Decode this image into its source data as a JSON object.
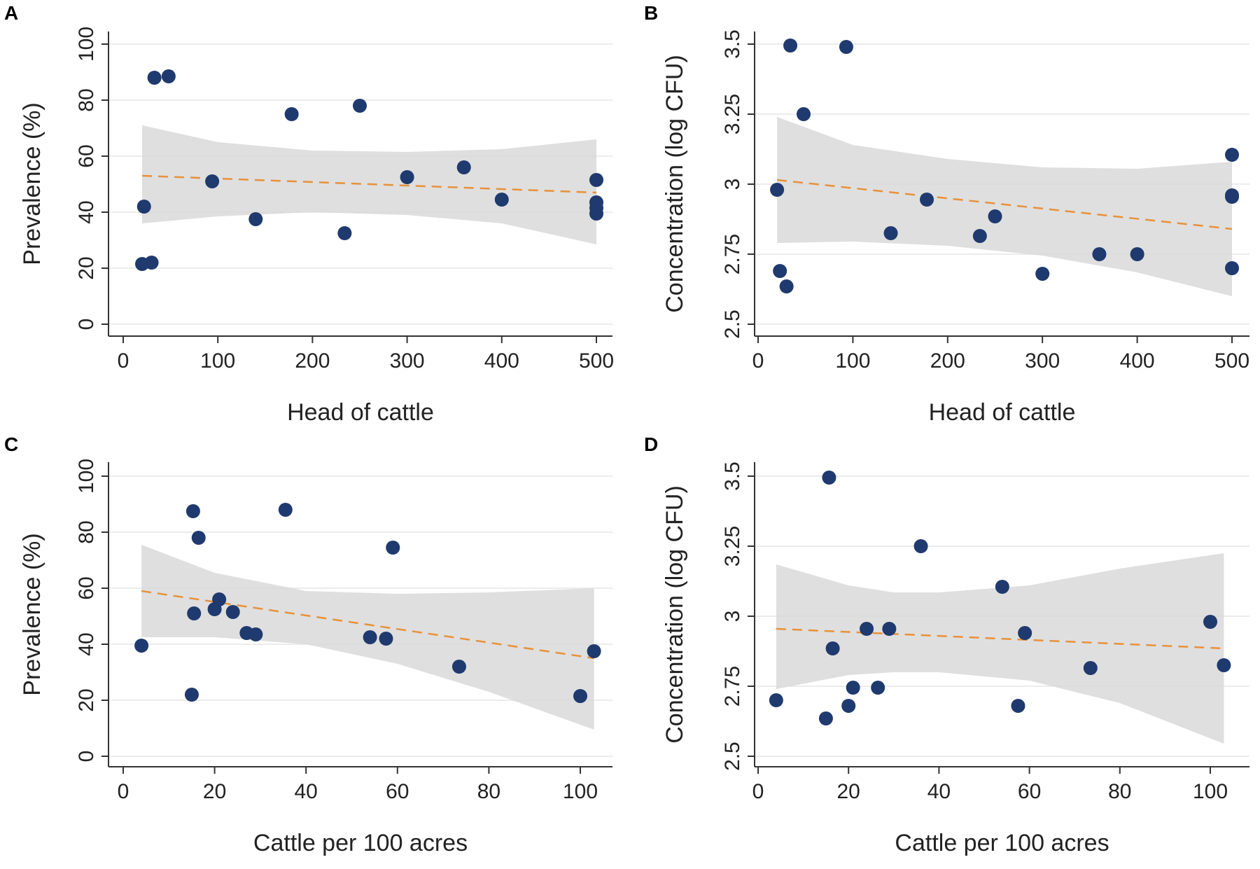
{
  "chart_data": [
    {
      "panel": "A",
      "type": "scatter",
      "xlabel": "Head of cattle",
      "ylabel": "Prevalence  (%)",
      "xlim": [
        0,
        520
      ],
      "ylim": [
        0,
        100
      ],
      "xticks": [
        "0",
        "100",
        "200",
        "300",
        "400",
        "500"
      ],
      "yticks": [
        "0",
        "20",
        "40",
        "60",
        "80",
        "100"
      ],
      "points": [
        [
          20,
          21.5
        ],
        [
          30,
          22
        ],
        [
          22,
          42
        ],
        [
          33,
          88
        ],
        [
          48,
          88.5
        ],
        [
          94,
          51
        ],
        [
          140,
          37.5
        ],
        [
          178,
          75
        ],
        [
          234,
          32.5
        ],
        [
          250,
          78
        ],
        [
          300,
          52.5
        ],
        [
          360,
          56
        ],
        [
          400,
          44.5
        ],
        [
          500,
          51.5
        ],
        [
          500,
          43.5
        ],
        [
          500,
          41.5
        ],
        [
          500,
          39.5
        ]
      ],
      "fit": {
        "x0": 20,
        "y0": 53,
        "x1": 500,
        "y1": 47
      },
      "ci_band": {
        "x": [
          20,
          100,
          200,
          300,
          400,
          500
        ],
        "upper": [
          71,
          65,
          62,
          61.5,
          62.5,
          66
        ],
        "lower": [
          36,
          38.5,
          40,
          39,
          36,
          28.5
        ]
      }
    },
    {
      "panel": "B",
      "type": "scatter",
      "xlabel": "Head of cattle",
      "ylabel": "Concentration  (log CFU)",
      "xlim": [
        0,
        520
      ],
      "ylim": [
        2.5,
        3.55
      ],
      "xticks": [
        "0",
        "100",
        "200",
        "300",
        "400",
        "500"
      ],
      "yticks": [
        "2.5",
        "2.75",
        "3",
        "3.25",
        "3.5"
      ],
      "points": [
        [
          20,
          2.98
        ],
        [
          23,
          2.69
        ],
        [
          30,
          2.635
        ],
        [
          34,
          3.495
        ],
        [
          48,
          3.25
        ],
        [
          93,
          3.49
        ],
        [
          140,
          2.825
        ],
        [
          178,
          2.945
        ],
        [
          234,
          2.815
        ],
        [
          250,
          2.885
        ],
        [
          300,
          2.68
        ],
        [
          360,
          2.75
        ],
        [
          400,
          2.75
        ],
        [
          500,
          3.105
        ],
        [
          500,
          2.96
        ],
        [
          500,
          2.955
        ],
        [
          500,
          2.7
        ]
      ],
      "fit": {
        "x0": 20,
        "y0": 3.015,
        "x1": 500,
        "y1": 2.84
      },
      "ci_band": {
        "x": [
          20,
          100,
          200,
          300,
          400,
          500
        ],
        "upper": [
          3.24,
          3.14,
          3.09,
          3.06,
          3.055,
          3.08
        ],
        "lower": [
          2.79,
          2.795,
          2.78,
          2.745,
          2.685,
          2.6
        ]
      }
    },
    {
      "panel": "C",
      "type": "scatter",
      "xlabel": "Cattle per 100 acres",
      "ylabel": "Prevalence  (%)",
      "xlim": [
        0,
        106
      ],
      "ylim": [
        0,
        100
      ],
      "xticks": [
        "0",
        "20",
        "40",
        "60",
        "80",
        "100"
      ],
      "yticks": [
        "0",
        "20",
        "40",
        "60",
        "80",
        "100"
      ],
      "points": [
        [
          4,
          39.5
        ],
        [
          15,
          22
        ],
        [
          15.3,
          87.5
        ],
        [
          15.5,
          51
        ],
        [
          16.5,
          78
        ],
        [
          20,
          52.5
        ],
        [
          21,
          56
        ],
        [
          24,
          51.5
        ],
        [
          27,
          44
        ],
        [
          29,
          43.5
        ],
        [
          35.5,
          88
        ],
        [
          54,
          42.5
        ],
        [
          57.5,
          42
        ],
        [
          59,
          74.5
        ],
        [
          73.5,
          32
        ],
        [
          100,
          21.5
        ],
        [
          103,
          37.5
        ]
      ],
      "fit": {
        "x0": 4,
        "y0": 59,
        "x1": 103,
        "y1": 35
      },
      "ci_band": {
        "x": [
          4,
          20,
          40,
          60,
          80,
          103
        ],
        "upper": [
          75.5,
          65.5,
          59,
          58,
          58.5,
          60
        ],
        "lower": [
          42.5,
          42.5,
          40,
          33,
          23,
          9.5
        ]
      }
    },
    {
      "panel": "D",
      "type": "scatter",
      "xlabel": "Cattle per 100 acres",
      "ylabel": "Concentration  (log CFU)",
      "xlim": [
        0,
        106
      ],
      "ylim": [
        2.5,
        3.55
      ],
      "xticks": [
        "0",
        "20",
        "40",
        "60",
        "80",
        "100"
      ],
      "yticks": [
        "2.5",
        "2.75",
        "3",
        "3.25",
        "3.5"
      ],
      "points": [
        [
          4,
          2.7
        ],
        [
          15,
          2.635
        ],
        [
          15.7,
          3.495
        ],
        [
          16.5,
          2.885
        ],
        [
          20,
          2.68
        ],
        [
          21,
          2.745
        ],
        [
          24,
          2.955
        ],
        [
          26.5,
          2.745
        ],
        [
          29,
          2.955
        ],
        [
          36,
          3.25
        ],
        [
          54,
          3.105
        ],
        [
          57.5,
          2.68
        ],
        [
          59,
          2.94
        ],
        [
          73.5,
          2.815
        ],
        [
          100,
          2.98
        ],
        [
          103,
          2.825
        ]
      ],
      "fit": {
        "x0": 4,
        "y0": 2.955,
        "x1": 103,
        "y1": 2.885
      },
      "ci_band": {
        "x": [
          4,
          20,
          30,
          40,
          60,
          80,
          103
        ],
        "upper": [
          3.185,
          3.11,
          3.085,
          3.085,
          3.11,
          3.17,
          3.225
        ],
        "lower": [
          2.74,
          2.79,
          2.8,
          2.8,
          2.77,
          2.69,
          2.545
        ]
      }
    }
  ]
}
